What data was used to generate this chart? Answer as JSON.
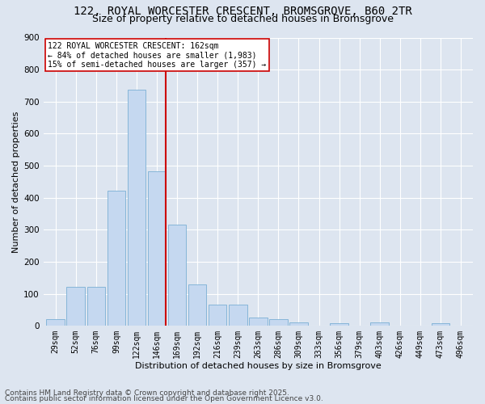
{
  "title_line1": "122, ROYAL WORCESTER CRESCENT, BROMSGROVE, B60 2TR",
  "title_line2": "Size of property relative to detached houses in Bromsgrove",
  "xlabel": "Distribution of detached houses by size in Bromsgrove",
  "ylabel": "Number of detached properties",
  "bar_labels": [
    "29sqm",
    "52sqm",
    "76sqm",
    "99sqm",
    "122sqm",
    "146sqm",
    "169sqm",
    "192sqm",
    "216sqm",
    "239sqm",
    "263sqm",
    "286sqm",
    "309sqm",
    "333sqm",
    "356sqm",
    "379sqm",
    "403sqm",
    "426sqm",
    "449sqm",
    "473sqm",
    "496sqm"
  ],
  "bar_values": [
    20,
    122,
    122,
    422,
    738,
    483,
    315,
    130,
    65,
    65,
    27,
    20,
    10,
    0,
    8,
    0,
    10,
    0,
    0,
    8,
    0
  ],
  "bar_color": "#c5d8f0",
  "bar_edge_color": "#7aafd4",
  "vline_color": "#cc0000",
  "annotation_text": "122 ROYAL WORCESTER CRESCENT: 162sqm\n← 84% of detached houses are smaller (1,983)\n15% of semi-detached houses are larger (357) →",
  "annotation_box_color": "#ffffff",
  "annotation_box_edge": "#cc0000",
  "ylim": [
    0,
    900
  ],
  "yticks": [
    0,
    100,
    200,
    300,
    400,
    500,
    600,
    700,
    800,
    900
  ],
  "bg_color": "#dde5f0",
  "plot_bg_color": "#dde5f0",
  "footer_line1": "Contains HM Land Registry data © Crown copyright and database right 2025.",
  "footer_line2": "Contains public sector information licensed under the Open Government Licence v3.0.",
  "title_fontsize": 10,
  "subtitle_fontsize": 9,
  "axis_label_fontsize": 8,
  "tick_fontsize": 7,
  "annotation_fontsize": 7,
  "footer_fontsize": 6.5
}
